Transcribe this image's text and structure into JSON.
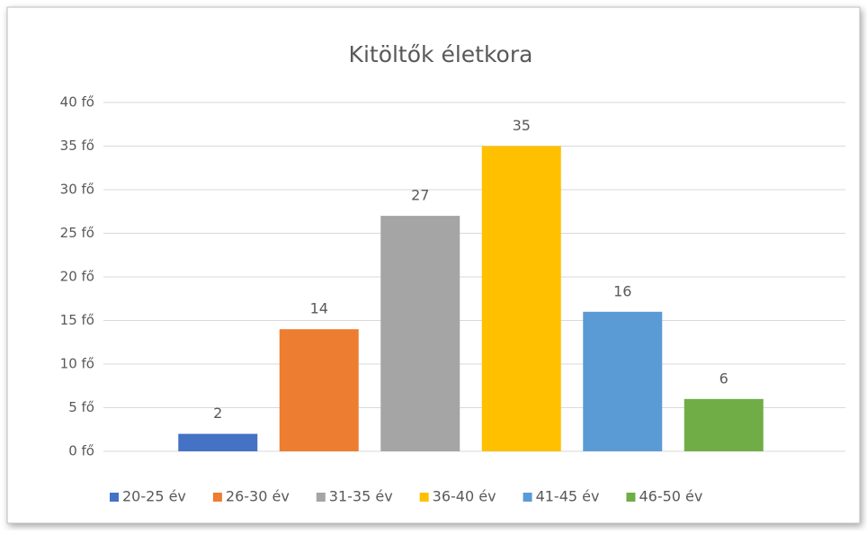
{
  "chart_data": {
    "type": "bar",
    "title": "Kitöltők életkora",
    "categories": [
      null
    ],
    "series": [
      {
        "name": "20-25 év",
        "color": "#4472c4",
        "values": [
          2
        ]
      },
      {
        "name": "26-30 év",
        "color": "#ed7d31",
        "values": [
          14
        ]
      },
      {
        "name": "31-35 év",
        "color": "#a5a5a5",
        "values": [
          27
        ]
      },
      {
        "name": "36-40 év",
        "color": "#ffc000",
        "values": [
          35
        ]
      },
      {
        "name": "41-45 év",
        "color": "#5b9bd5",
        "values": [
          16
        ]
      },
      {
        "name": "46-50 év",
        "color": "#70ad47",
        "values": [
          6
        ]
      }
    ],
    "ylim": [
      0,
      40
    ],
    "yticks": [
      {
        "value": 0,
        "label": "0 fő"
      },
      {
        "value": 5,
        "label": "5 fő"
      },
      {
        "value": 10,
        "label": "10 fő"
      },
      {
        "value": 15,
        "label": "15 fő"
      },
      {
        "value": 20,
        "label": "20 fő"
      },
      {
        "value": 25,
        "label": "25 fő"
      },
      {
        "value": 30,
        "label": "30 fő"
      },
      {
        "value": 35,
        "label": "35 fő"
      },
      {
        "value": 40,
        "label": "40 fő"
      }
    ],
    "grid": true,
    "legend": "bottom"
  }
}
